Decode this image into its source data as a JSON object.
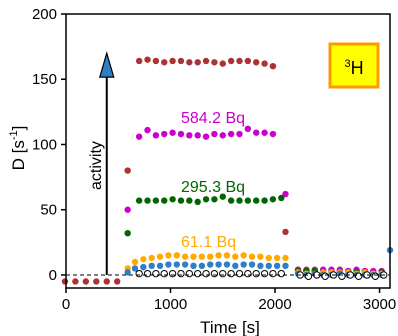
{
  "chart_data": {
    "type": "scatter",
    "xlabel": "Time [s]",
    "ylabel": "D [s-1]",
    "xlim": [
      0,
      3100
    ],
    "ylim": [
      -10,
      200
    ],
    "xticks": [
      0,
      1000,
      2000,
      3000
    ],
    "yticks": [
      0,
      50,
      100,
      150,
      200
    ],
    "xtick_labels": [
      "0",
      "1000",
      "2000",
      "3000"
    ],
    "ytick_labels": [
      "0",
      "50",
      "100",
      "150",
      "200"
    ],
    "grid": false,
    "baseline": {
      "y": 0,
      "style": "dashed"
    },
    "badge": {
      "base": "H",
      "superscript": "3",
      "fill": "#ffff00",
      "border": "#ff9900"
    },
    "annotations": [
      {
        "text": "584.2 Bq",
        "color": "#cc00cc"
      },
      {
        "text": "295.3 Bq",
        "color": "#006600"
      },
      {
        "text": "61.1 Bq",
        "color": "#ffaa00"
      },
      {
        "text": "activity",
        "color": "#000000",
        "rotation": -90
      }
    ],
    "arrow": {
      "x": 390,
      "y_from": 0,
      "y_to": 170,
      "head_fill": "#2f7fc7"
    },
    "series": [
      {
        "color": "#aa3333",
        "marker": "filled",
        "points": [
          [
            -10,
            -5
          ],
          [
            90,
            -5
          ],
          [
            190,
            -5
          ],
          [
            290,
            -5
          ],
          [
            390,
            -5
          ],
          [
            490,
            -5
          ],
          [
            590,
            80
          ],
          [
            700,
            164
          ],
          [
            780,
            165
          ],
          [
            860,
            164
          ],
          [
            940,
            163
          ],
          [
            1020,
            164
          ],
          [
            1100,
            164
          ],
          [
            1180,
            163
          ],
          [
            1260,
            163
          ],
          [
            1340,
            164
          ],
          [
            1420,
            163
          ],
          [
            1500,
            162
          ],
          [
            1580,
            164
          ],
          [
            1660,
            164
          ],
          [
            1740,
            164
          ],
          [
            1820,
            163
          ],
          [
            1900,
            162
          ],
          [
            1980,
            160
          ],
          [
            2100,
            33
          ],
          [
            2220,
            4
          ],
          [
            2300,
            4
          ],
          [
            2380,
            4
          ],
          [
            2460,
            3
          ],
          [
            2540,
            3
          ],
          [
            2620,
            4
          ],
          [
            2700,
            3
          ],
          [
            2780,
            3
          ],
          [
            2860,
            3
          ],
          [
            2940,
            2
          ],
          [
            3020,
            2
          ]
        ]
      },
      {
        "color": "#cc00cc",
        "marker": "filled",
        "points": [
          [
            590,
            50
          ],
          [
            700,
            106
          ],
          [
            780,
            111
          ],
          [
            860,
            107
          ],
          [
            940,
            108
          ],
          [
            1020,
            109
          ],
          [
            1100,
            108
          ],
          [
            1180,
            107
          ],
          [
            1260,
            107
          ],
          [
            1340,
            106
          ],
          [
            1420,
            108
          ],
          [
            1500,
            107
          ],
          [
            1580,
            108
          ],
          [
            1660,
            108
          ],
          [
            1740,
            112
          ],
          [
            1820,
            109
          ],
          [
            1900,
            109
          ],
          [
            1980,
            108
          ],
          [
            2100,
            62
          ],
          [
            2220,
            4
          ],
          [
            2300,
            3
          ],
          [
            2380,
            3
          ],
          [
            2460,
            4
          ],
          [
            2540,
            4
          ],
          [
            2620,
            3
          ],
          [
            2700,
            3
          ],
          [
            2780,
            4
          ],
          [
            2860,
            3
          ],
          [
            2940,
            3
          ],
          [
            3020,
            3
          ]
        ]
      },
      {
        "color": "#006600",
        "marker": "filled",
        "points": [
          [
            590,
            32
          ],
          [
            700,
            57
          ],
          [
            780,
            57
          ],
          [
            860,
            57
          ],
          [
            940,
            57
          ],
          [
            1020,
            58
          ],
          [
            1100,
            57
          ],
          [
            1180,
            57
          ],
          [
            1260,
            56
          ],
          [
            1340,
            58
          ],
          [
            1420,
            58
          ],
          [
            1500,
            60
          ],
          [
            1580,
            57
          ],
          [
            1660,
            57
          ],
          [
            1740,
            57
          ],
          [
            1820,
            57
          ],
          [
            1900,
            57
          ],
          [
            1980,
            58
          ],
          [
            2060,
            59
          ],
          [
            2220,
            3
          ],
          [
            2300,
            3
          ],
          [
            2380,
            3
          ],
          [
            2460,
            2
          ],
          [
            2540,
            2
          ],
          [
            2620,
            2
          ],
          [
            2700,
            2
          ],
          [
            2780,
            2
          ],
          [
            2860,
            2
          ],
          [
            2940,
            1
          ],
          [
            3020,
            2
          ]
        ]
      },
      {
        "color": "#ffaa00",
        "marker": "filled",
        "points": [
          [
            590,
            5
          ],
          [
            660,
            10
          ],
          [
            740,
            12
          ],
          [
            820,
            13
          ],
          [
            900,
            14
          ],
          [
            980,
            15
          ],
          [
            1060,
            15
          ],
          [
            1140,
            14
          ],
          [
            1220,
            14
          ],
          [
            1300,
            14
          ],
          [
            1380,
            14
          ],
          [
            1460,
            15
          ],
          [
            1540,
            15
          ],
          [
            1620,
            14
          ],
          [
            1700,
            15
          ],
          [
            1780,
            14
          ],
          [
            1860,
            14
          ],
          [
            1940,
            13
          ],
          [
            2020,
            13
          ],
          [
            2100,
            13
          ],
          [
            2220,
            2
          ],
          [
            2300,
            1
          ],
          [
            2380,
            1
          ],
          [
            2460,
            2
          ],
          [
            2540,
            2
          ],
          [
            2620,
            2
          ],
          [
            2700,
            2
          ],
          [
            2780,
            1
          ],
          [
            2860,
            2
          ],
          [
            2940,
            1
          ],
          [
            3020,
            1
          ]
        ]
      },
      {
        "color": "#2f7fc7",
        "marker": "filled",
        "points": [
          [
            590,
            2
          ],
          [
            660,
            5
          ],
          [
            740,
            6
          ],
          [
            820,
            7
          ],
          [
            900,
            7
          ],
          [
            980,
            8
          ],
          [
            1060,
            8
          ],
          [
            1140,
            8
          ],
          [
            1220,
            7
          ],
          [
            1300,
            7
          ],
          [
            1380,
            8
          ],
          [
            1460,
            8
          ],
          [
            1540,
            8
          ],
          [
            1620,
            7
          ],
          [
            1700,
            8
          ],
          [
            1780,
            8
          ],
          [
            1860,
            7
          ],
          [
            1940,
            7
          ],
          [
            2020,
            7
          ],
          [
            2100,
            7
          ],
          [
            2220,
            1
          ],
          [
            2300,
            0
          ],
          [
            2380,
            1
          ],
          [
            2460,
            0
          ],
          [
            2540,
            0
          ],
          [
            2620,
            1
          ],
          [
            2700,
            0
          ],
          [
            2780,
            0
          ],
          [
            2860,
            0
          ],
          [
            2940,
            0
          ],
          [
            3020,
            0
          ],
          [
            3100,
            19
          ]
        ]
      },
      {
        "color": "#000000",
        "marker": "open",
        "points": [
          [
            700,
            1
          ],
          [
            780,
            1
          ],
          [
            860,
            1
          ],
          [
            940,
            1
          ],
          [
            1020,
            1
          ],
          [
            1100,
            1
          ],
          [
            1180,
            1
          ],
          [
            1260,
            1
          ],
          [
            1340,
            1
          ],
          [
            1420,
            1
          ],
          [
            1500,
            1
          ],
          [
            1580,
            1
          ],
          [
            1660,
            1
          ],
          [
            1740,
            1
          ],
          [
            1820,
            1
          ],
          [
            1900,
            1
          ],
          [
            1980,
            1
          ],
          [
            2060,
            1
          ],
          [
            2240,
            0
          ],
          [
            2320,
            -1
          ],
          [
            2400,
            0
          ],
          [
            2480,
            -1
          ],
          [
            2560,
            0
          ],
          [
            2640,
            -1
          ],
          [
            2720,
            0
          ],
          [
            2800,
            -1
          ],
          [
            2880,
            0
          ],
          [
            2960,
            -1
          ],
          [
            3040,
            0
          ]
        ]
      }
    ]
  }
}
